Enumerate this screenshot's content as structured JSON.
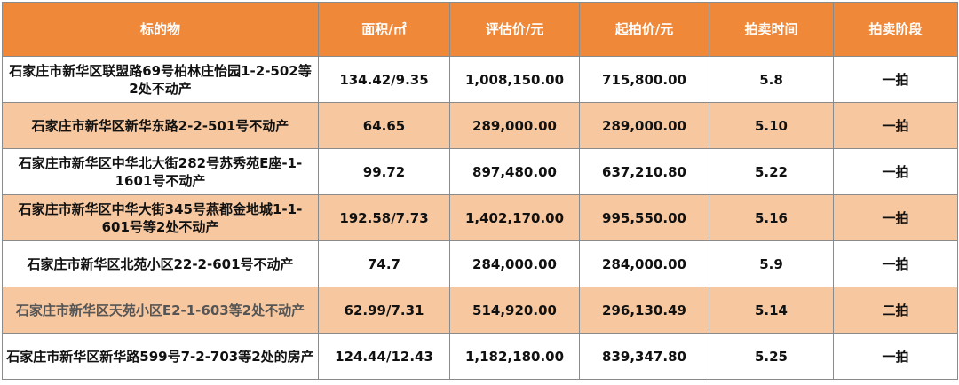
{
  "table": {
    "headers": [
      "标的物",
      "面积/㎡",
      "评估价/元",
      "起拍价/元",
      "拍卖时间",
      "拍卖阶段"
    ],
    "rows": [
      [
        "石家庄市新华区联盟路69号柏林庄怡园1-2-502等2处不动产",
        "134.42/9.35",
        "1,008,150.00",
        "715,800.00",
        "5.8",
        "一拍"
      ],
      [
        "石家庄市新华区新华东路2-2-501号不动产",
        "64.65",
        "289,000.00",
        "289,000.00",
        "5.10",
        "一拍"
      ],
      [
        "石家庄市新华区中华北大街282号苏秀苑E座-1-1601号不动产",
        "99.72",
        "897,480.00",
        "637,210.80",
        "5.22",
        "一拍"
      ],
      [
        "石家庄市新华区中华大街345号燕都金地城1-1-601号等2处不动产",
        "192.58/7.73",
        "1,402,170.00",
        "995,550.00",
        "5.16",
        "一拍"
      ],
      [
        "石家庄市新华区北苑小区22-2-601号不动产",
        "74.7",
        "284,000.00",
        "284,000.00",
        "5.9",
        "一拍"
      ],
      [
        "石家庄市新华区天苑小区E2-1-603等2处不动产",
        "62.99/7.31",
        "514,920.00",
        "296,130.49",
        "5.14",
        "二拍"
      ],
      [
        "石家庄市新华区新华路599号7-2-703等2处的房产",
        "124.44/12.43",
        "1,182,180.00",
        "839,347.80",
        "5.25",
        "一拍"
      ]
    ]
  },
  "colors": {
    "header_bg": "#f0883a",
    "stripe_bg": "#f7c8a0",
    "border": "#8a8a8a"
  }
}
